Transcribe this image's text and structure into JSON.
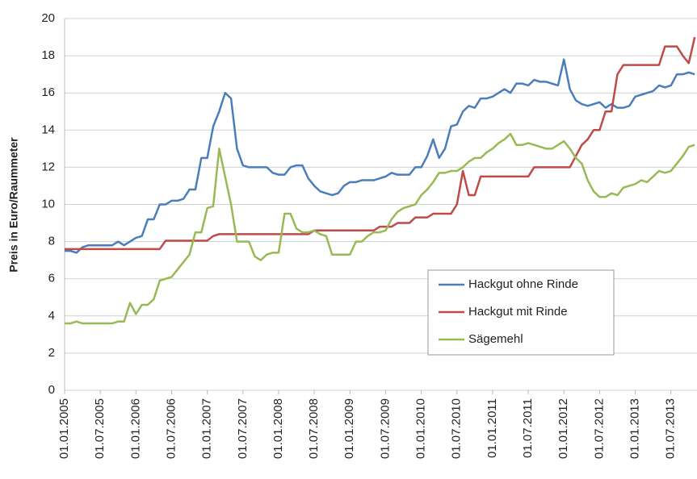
{
  "chart_data": {
    "type": "line",
    "ylabel": "Preis in Euro/Raummeter",
    "categories": [
      "01.01.2005",
      null,
      null,
      null,
      null,
      null,
      "01.07.2005",
      null,
      null,
      null,
      null,
      null,
      "01.01.2006",
      null,
      null,
      null,
      null,
      null,
      "01.07.2006",
      null,
      null,
      null,
      null,
      null,
      "01.01.2007",
      null,
      null,
      null,
      null,
      null,
      "01.07.2007",
      null,
      null,
      null,
      null,
      null,
      "01.01.2008",
      null,
      null,
      null,
      null,
      null,
      "01.07.2008",
      null,
      null,
      null,
      null,
      null,
      "01.01.2009",
      null,
      null,
      null,
      null,
      null,
      "01.07.2009",
      null,
      null,
      null,
      null,
      null,
      "01.01.2010",
      null,
      null,
      null,
      null,
      null,
      "01.07.2010",
      null,
      null,
      null,
      null,
      null,
      "01.01.2011",
      null,
      null,
      null,
      null,
      null,
      "01.07.2011",
      null,
      null,
      null,
      null,
      null,
      "01.01.2012",
      null,
      null,
      null,
      null,
      null,
      "01.07.2012",
      null,
      null,
      null,
      null,
      null,
      "01.01.2013",
      null,
      null,
      null,
      null,
      null,
      "01.07.2013",
      null,
      null,
      null,
      null
    ],
    "series": [
      {
        "name": "Hackgut ohne Rinde",
        "color": "#4a7ebb",
        "values": [
          7.5,
          7.5,
          7.4,
          7.7,
          7.8,
          7.8,
          7.8,
          7.8,
          7.8,
          8.0,
          7.8,
          8.0,
          8.2,
          8.3,
          9.2,
          9.2,
          10.0,
          10.0,
          10.2,
          10.2,
          10.3,
          10.8,
          10.8,
          12.5,
          12.5,
          14.2,
          15.0,
          16.0,
          15.7,
          13.0,
          12.1,
          12.0,
          12.0,
          12.0,
          12.0,
          11.7,
          11.6,
          11.6,
          12.0,
          12.1,
          12.1,
          11.4,
          11.0,
          10.7,
          10.6,
          10.5,
          10.6,
          11.0,
          11.2,
          11.2,
          11.3,
          11.3,
          11.3,
          11.4,
          11.5,
          11.7,
          11.6,
          11.6,
          11.6,
          12.0,
          12.0,
          12.6,
          13.5,
          12.5,
          13.0,
          14.2,
          14.3,
          15.0,
          15.3,
          15.2,
          15.7,
          15.7,
          15.8,
          16.0,
          16.2,
          16.0,
          16.5,
          16.5,
          16.4,
          16.7,
          16.6,
          16.6,
          16.5,
          16.4,
          17.8,
          16.2,
          15.6,
          15.4,
          15.3,
          15.4,
          15.5,
          15.2,
          15.4,
          15.2,
          15.2,
          15.3,
          15.8,
          15.9,
          16.0,
          16.1,
          16.4,
          16.3,
          16.4,
          17.0,
          17.0,
          17.1,
          17.0
        ]
      },
      {
        "name": "Hackgut mit Rinde",
        "color": "#be4b48",
        "values": [
          7.6,
          7.6,
          7.6,
          7.6,
          7.6,
          7.6,
          7.6,
          7.6,
          7.6,
          7.6,
          7.6,
          7.6,
          7.6,
          7.6,
          7.6,
          7.6,
          7.6,
          8.05,
          8.05,
          8.05,
          8.05,
          8.05,
          8.05,
          8.05,
          8.05,
          8.3,
          8.4,
          8.4,
          8.4,
          8.4,
          8.4,
          8.4,
          8.4,
          8.4,
          8.4,
          8.4,
          8.4,
          8.4,
          8.4,
          8.4,
          8.4,
          8.4,
          8.6,
          8.6,
          8.6,
          8.6,
          8.6,
          8.6,
          8.6,
          8.6,
          8.6,
          8.6,
          8.6,
          8.8,
          8.8,
          8.8,
          9.0,
          9.0,
          9.0,
          9.3,
          9.3,
          9.3,
          9.5,
          9.5,
          9.5,
          9.5,
          10.0,
          11.8,
          10.5,
          10.5,
          11.5,
          11.5,
          11.5,
          11.5,
          11.5,
          11.5,
          11.5,
          11.5,
          11.5,
          12.0,
          12.0,
          12.0,
          12.0,
          12.0,
          12.0,
          12.0,
          12.6,
          13.2,
          13.5,
          14,
          14,
          15,
          15,
          17,
          17.5,
          17.5,
          17.5,
          17.5,
          17.5,
          17.5,
          17.5,
          18.5,
          18.5,
          18.5,
          18.0,
          17.6,
          19
        ]
      },
      {
        "name": "Sägemehl",
        "color": "#98b954",
        "values": [
          3.6,
          3.6,
          3.7,
          3.6,
          3.6,
          3.6,
          3.6,
          3.6,
          3.6,
          3.7,
          3.7,
          4.7,
          4.1,
          4.6,
          4.6,
          4.9,
          5.9,
          6.0,
          6.1,
          6.5,
          6.9,
          7.3,
          8.5,
          8.5,
          9.8,
          9.9,
          13.0,
          11.5,
          10.0,
          8.0,
          8.0,
          8.0,
          7.2,
          7.0,
          7.3,
          7.4,
          7.4,
          9.5,
          9.5,
          8.7,
          8.5,
          8.5,
          8.6,
          8.4,
          8.3,
          7.3,
          7.3,
          7.3,
          7.3,
          8.0,
          8.0,
          8.3,
          8.5,
          8.5,
          8.6,
          9.2,
          9.6,
          9.8,
          9.9,
          10.0,
          10.5,
          10.8,
          11.2,
          11.7,
          11.7,
          11.8,
          11.8,
          12.0,
          12.3,
          12.5,
          12.5,
          12.8,
          13.0,
          13.3,
          13.5,
          13.8,
          13.2,
          13.2,
          13.3,
          13.2,
          13.1,
          13.0,
          13.0,
          13.2,
          13.4,
          13.0,
          12.5,
          12.2,
          11.3,
          10.7,
          10.4,
          10.4,
          10.6,
          10.5,
          10.9,
          11.0,
          11.1,
          11.3,
          11.2,
          11.5,
          11.8,
          11.7,
          11.8,
          12.2,
          12.6,
          13.1,
          13.2
        ]
      }
    ],
    "ylim": [
      0,
      20
    ],
    "yticks": [
      0,
      2,
      4,
      6,
      8,
      10,
      12,
      14,
      16,
      18,
      20
    ],
    "grid": true
  }
}
